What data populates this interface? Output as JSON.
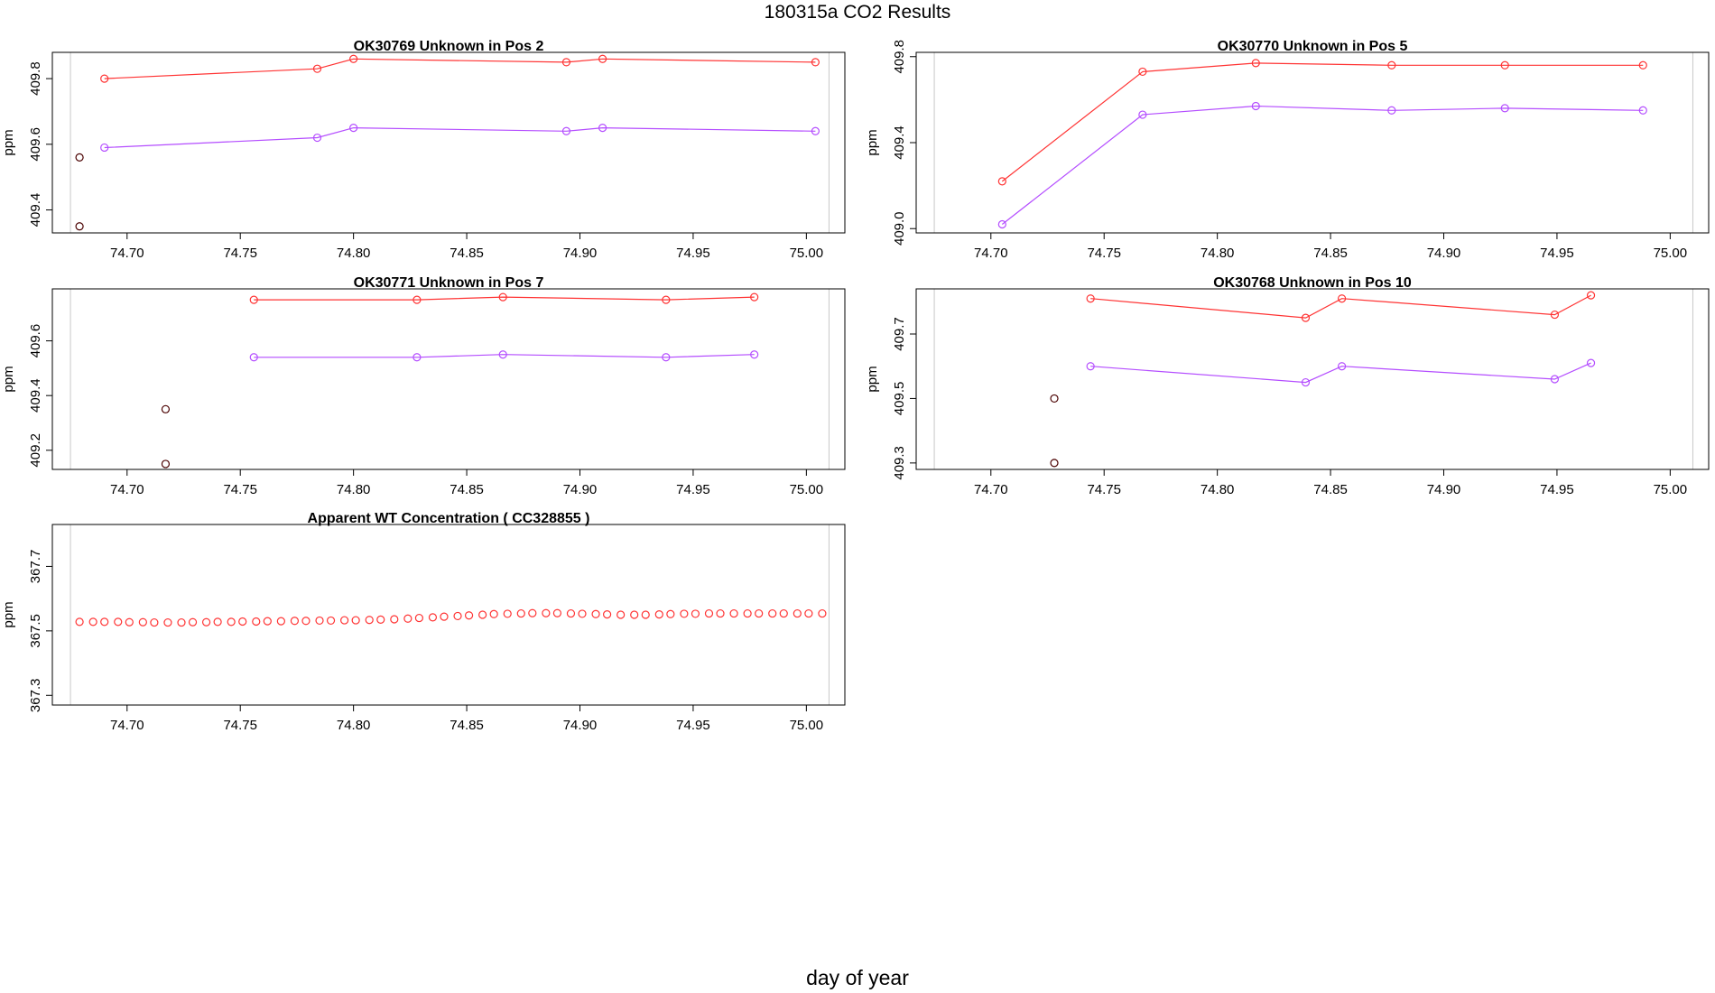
{
  "title": "180315a  CO2 Results",
  "xlabel": "day of year",
  "ylabel": "ppm",
  "colors": {
    "series_a": "#ff3333",
    "series_b": "#b44dff",
    "reference": "#4a0000",
    "frame": "#000000",
    "bounds": "#c8c8c8"
  },
  "chart_data": [
    {
      "type": "line",
      "title": "OK30769    Unknown in Pos 2",
      "xlim": [
        74.667,
        75.017
      ],
      "ylim": [
        409.33,
        409.88
      ],
      "xticks": [
        "74.70",
        "74.75",
        "74.80",
        "74.85",
        "74.90",
        "74.95",
        "75.00"
      ],
      "yticks": [
        "409.4",
        "409.6",
        "409.8"
      ],
      "bounds_x": [
        74.675,
        75.01
      ],
      "points": [
        {
          "x": 74.679,
          "y": 409.56
        },
        {
          "x": 74.679,
          "y": 409.35
        }
      ],
      "series": [
        {
          "x": [
            74.69,
            74.784,
            74.8,
            74.894,
            74.91,
            75.004
          ],
          "values": [
            409.8,
            409.83,
            409.86,
            409.85,
            409.86,
            409.85
          ]
        },
        {
          "x": [
            74.69,
            74.784,
            74.8,
            74.894,
            74.91,
            75.004
          ],
          "values": [
            409.59,
            409.62,
            409.65,
            409.64,
            409.65,
            409.64
          ]
        }
      ]
    },
    {
      "type": "line",
      "title": "OK30770    Unknown in Pos 5",
      "xlim": [
        74.667,
        75.017
      ],
      "ylim": [
        408.98,
        409.82
      ],
      "xticks": [
        "74.70",
        "74.75",
        "74.80",
        "74.85",
        "74.90",
        "74.95",
        "75.00"
      ],
      "yticks": [
        "409.0",
        "409.4",
        "409.8"
      ],
      "bounds_x": [
        74.675,
        75.01
      ],
      "points": [],
      "series": [
        {
          "x": [
            74.705,
            74.767,
            74.817,
            74.877,
            74.927,
            74.988
          ],
          "values": [
            409.22,
            409.73,
            409.77,
            409.76,
            409.76,
            409.76
          ]
        },
        {
          "x": [
            74.705,
            74.767,
            74.817,
            74.877,
            74.927,
            74.988
          ],
          "values": [
            409.02,
            409.53,
            409.57,
            409.55,
            409.56,
            409.55
          ]
        }
      ]
    },
    {
      "type": "line",
      "title": "OK30771    Unknown in Pos 7",
      "xlim": [
        74.667,
        75.017
      ],
      "ylim": [
        409.13,
        409.79
      ],
      "xticks": [
        "74.70",
        "74.75",
        "74.80",
        "74.85",
        "74.90",
        "74.95",
        "75.00"
      ],
      "yticks": [
        "409.2",
        "409.4",
        "409.6"
      ],
      "bounds_x": [
        74.675,
        75.01
      ],
      "points": [
        {
          "x": 74.717,
          "y": 409.35
        },
        {
          "x": 74.717,
          "y": 409.15
        }
      ],
      "series": [
        {
          "x": [
            74.756,
            74.828,
            74.866,
            74.938,
            74.977
          ],
          "values": [
            409.75,
            409.75,
            409.76,
            409.75,
            409.76
          ]
        },
        {
          "x": [
            74.756,
            74.828,
            74.866,
            74.938,
            74.977
          ],
          "values": [
            409.54,
            409.54,
            409.55,
            409.54,
            409.55
          ]
        }
      ]
    },
    {
      "type": "line",
      "title": "OK30768    Unknown in Pos 10",
      "xlim": [
        74.667,
        75.017
      ],
      "ylim": [
        409.28,
        409.84
      ],
      "xticks": [
        "74.70",
        "74.75",
        "74.80",
        "74.85",
        "74.90",
        "74.95",
        "75.00"
      ],
      "yticks": [
        "409.3",
        "409.5",
        "409.7"
      ],
      "bounds_x": [
        74.675,
        75.01
      ],
      "points": [
        {
          "x": 74.728,
          "y": 409.5
        },
        {
          "x": 74.728,
          "y": 409.3
        }
      ],
      "series": [
        {
          "x": [
            74.744,
            74.839,
            74.855,
            74.949,
            74.965
          ],
          "values": [
            409.81,
            409.75,
            409.81,
            409.76,
            409.82
          ]
        },
        {
          "x": [
            74.744,
            74.839,
            74.855,
            74.949,
            74.965
          ],
          "values": [
            409.6,
            409.55,
            409.6,
            409.56,
            409.61
          ]
        }
      ]
    },
    {
      "type": "scatter",
      "title": "Apparent WT Concentration ( CC328855 )",
      "xlim": [
        74.667,
        75.017
      ],
      "ylim": [
        367.27,
        367.83
      ],
      "xticks": [
        "74.70",
        "74.75",
        "74.80",
        "74.85",
        "74.90",
        "74.95",
        "75.00"
      ],
      "yticks": [
        "367.3",
        "367.5",
        "367.7"
      ],
      "bounds_x": [
        74.675,
        75.01
      ],
      "points": [],
      "series": [
        {
          "x": [
            74.679,
            74.685,
            74.69,
            74.696,
            74.701,
            74.707,
            74.712,
            74.718,
            74.724,
            74.729,
            74.735,
            74.74,
            74.746,
            74.751,
            74.757,
            74.762,
            74.768,
            74.774,
            74.779,
            74.785,
            74.79,
            74.796,
            74.801,
            74.807,
            74.812,
            74.818,
            74.824,
            74.829,
            74.835,
            74.84,
            74.846,
            74.851,
            74.857,
            74.862,
            74.868,
            74.874,
            74.879,
            74.885,
            74.89,
            74.896,
            74.901,
            74.907,
            74.912,
            74.918,
            74.924,
            74.929,
            74.935,
            74.94,
            74.946,
            74.951,
            74.957,
            74.962,
            74.968,
            74.974,
            74.979,
            74.985,
            74.99,
            74.996,
            75.001,
            75.007
          ],
          "values": [
            367.528,
            367.528,
            367.528,
            367.528,
            367.527,
            367.527,
            367.526,
            367.526,
            367.526,
            367.527,
            367.527,
            367.528,
            367.528,
            367.529,
            367.529,
            367.53,
            367.53,
            367.531,
            367.531,
            367.532,
            367.532,
            367.533,
            367.533,
            367.534,
            367.535,
            367.536,
            367.538,
            367.54,
            367.542,
            367.544,
            367.546,
            367.548,
            367.55,
            367.552,
            367.553,
            367.554,
            367.555,
            367.555,
            367.555,
            367.554,
            367.553,
            367.552,
            367.551,
            367.55,
            367.55,
            367.55,
            367.551,
            367.552,
            367.553,
            367.553,
            367.554,
            367.554,
            367.554,
            367.554,
            367.554,
            367.554,
            367.554,
            367.554,
            367.554,
            367.554
          ]
        }
      ]
    }
  ]
}
